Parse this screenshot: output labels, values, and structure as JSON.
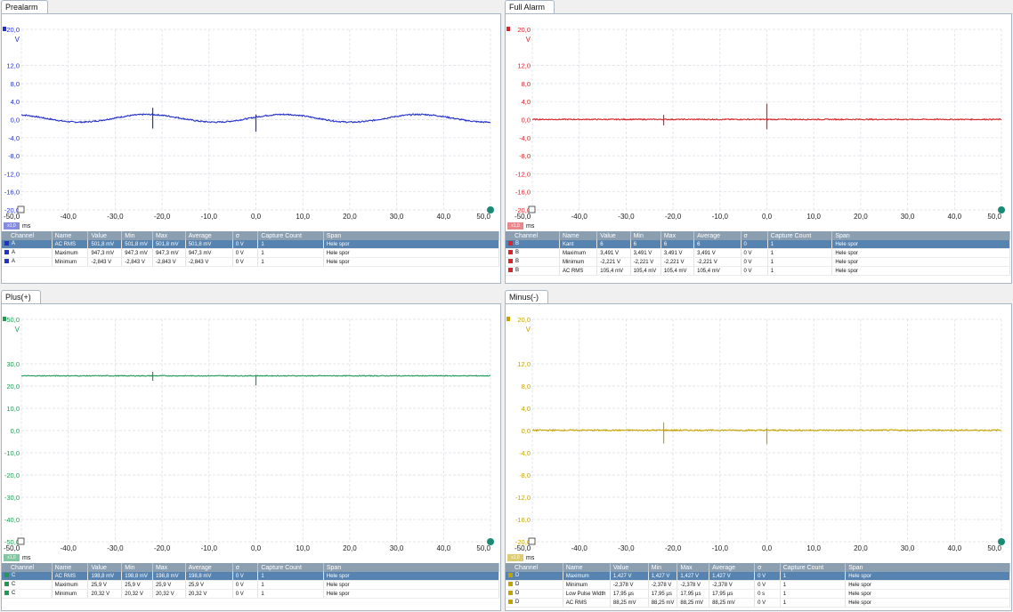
{
  "panels": [
    {
      "id": "A",
      "title": "Prealarm",
      "color": "#2231c7",
      "ymax_label": "20,0",
      "unit": "V",
      "y_ticks": [
        "12,0",
        "8,0",
        "4,0",
        "0,0",
        "-4,0",
        "-8,0",
        "-12,0",
        "-16,0",
        "-20,0"
      ],
      "y_values": [
        12,
        8,
        4,
        0,
        -4,
        -8,
        -12,
        -16,
        -20
      ],
      "ymin": -20,
      "ymax": 20,
      "x_ticks": [
        "-50,0",
        "-40,0",
        "-30,0",
        "-20,0",
        "-10,0",
        "0,0",
        "10,0",
        "20,0",
        "30,0",
        "40,0",
        "50,0"
      ],
      "x_unit": "ms",
      "zoom": "x1,0",
      "trace": {
        "kind": "sine",
        "offset": 0.3,
        "amp": 0.85,
        "period": 29,
        "phase": 0.3,
        "noise": 0.15,
        "spikes": [
          [
            -22,
            -3.1,
            1.5
          ],
          [
            0,
            -3.2,
            0.6
          ]
        ]
      },
      "headers": [
        "Channel",
        "Name",
        "Value",
        "Min",
        "Max",
        "Average",
        "σ",
        "Capture Count",
        "Span"
      ],
      "rows": [
        [
          "A",
          "AC RMS",
          "501,8 mV",
          "501,8 mV",
          "501,8 mV",
          "501,8 mV",
          "0 V",
          "1",
          "Hele spor"
        ],
        [
          "A",
          "Maximum",
          "947,3 mV",
          "947,3 mV",
          "947,3 mV",
          "947,3 mV",
          "0 V",
          "1",
          "Hele spor"
        ],
        [
          "A",
          "Minimum",
          "-2,843 V",
          "-2,843 V",
          "-2,843 V",
          "-2,843 V",
          "0 V",
          "1",
          "Hele spor"
        ]
      ]
    },
    {
      "id": "B",
      "title": "Full Alarm",
      "color": "#d8262c",
      "ymax_label": "20,0",
      "unit": "V",
      "y_ticks": [
        "12,0",
        "8,0",
        "4,0",
        "0,0",
        "-4,0",
        "-8,0",
        "-12,0",
        "-16,0",
        "-20,0"
      ],
      "y_values": [
        12,
        8,
        4,
        0,
        -4,
        -8,
        -12,
        -16,
        -20
      ],
      "ymin": -20,
      "ymax": 20,
      "x_ticks": [
        "-50,0",
        "-40,0",
        "-30,0",
        "-20,0",
        "-10,0",
        "0,0",
        "10,0",
        "20,0",
        "30,0",
        "40,0",
        "50,0"
      ],
      "x_unit": "ms",
      "zoom": "x1,0",
      "trace": {
        "kind": "flat",
        "offset": 0.05,
        "noise": 0.12,
        "spikes": [
          [
            -22,
            1.0,
            -1.3
          ],
          [
            0,
            3.5,
            -2.2
          ]
        ]
      },
      "headers": [
        "Channel",
        "Name",
        "Value",
        "Min",
        "Max",
        "Average",
        "σ",
        "Capture Count",
        "Span"
      ],
      "rows": [
        [
          "B",
          "Kant",
          "6",
          "6",
          "6",
          "6",
          "0",
          "1",
          "Hele spor"
        ],
        [
          "B",
          "Maximum",
          "3,491 V",
          "3,491 V",
          "3,491 V",
          "3,491 V",
          "0 V",
          "1",
          "Hele spor"
        ],
        [
          "B",
          "Minimum",
          "-2,221 V",
          "-2,221 V",
          "-2,221 V",
          "-2,221 V",
          "0 V",
          "1",
          "Hele spor"
        ],
        [
          "B",
          "AC RMS",
          "105,4 mV",
          "105,4 mV",
          "105,4 mV",
          "105,4 mV",
          "0 V",
          "1",
          "Hele spor"
        ]
      ]
    },
    {
      "id": "C",
      "title": "Plus(+)",
      "color": "#1f9a54",
      "ymax_label": "50,0",
      "unit": "V",
      "y_ticks": [
        "30,0",
        "20,0",
        "10,0",
        "0,0",
        "-10,0",
        "-20,0",
        "-30,0",
        "-40,0",
        "-50,0"
      ],
      "y_values": [
        30,
        20,
        10,
        0,
        -10,
        -20,
        -30,
        -40,
        -50
      ],
      "ymin": -50,
      "ymax": 50,
      "x_ticks": [
        "-50,0",
        "-40,0",
        "-30,0",
        "-20,0",
        "-10,0",
        "0,0",
        "10,0",
        "20,0",
        "30,0",
        "40,0",
        "50,0"
      ],
      "x_unit": "ms",
      "zoom": "x1,0",
      "trace": {
        "kind": "flat",
        "offset": 24.6,
        "noise": 0.18,
        "spikes": [
          [
            -22,
            1.8,
            -2.2
          ],
          [
            0,
            0.4,
            -4.3
          ]
        ]
      },
      "headers": [
        "Channel",
        "Name",
        "Value",
        "Min",
        "Max",
        "Average",
        "σ",
        "Capture Count",
        "Span"
      ],
      "rows": [
        [
          "C",
          "AC RMS",
          "198,8 mV",
          "198,8 mV",
          "198,8 mV",
          "198,8 mV",
          "0 V",
          "1",
          "Hele spor"
        ],
        [
          "C",
          "Maximum",
          "25,9 V",
          "25,9 V",
          "25,9 V",
          "25,9 V",
          "0 V",
          "1",
          "Hele spor"
        ],
        [
          "C",
          "Minimum",
          "20,32 V",
          "20,32 V",
          "20,32 V",
          "20,32 V",
          "0 V",
          "1",
          "Hele spor"
        ]
      ]
    },
    {
      "id": "D",
      "title": "Minus(-)",
      "color": "#c5a200",
      "ymax_label": "20,0",
      "unit": "V",
      "y_ticks": [
        "12,0",
        "8,0",
        "4,0",
        "0,0",
        "-4,0",
        "-8,0",
        "-12,0",
        "-16,0",
        "-20,0"
      ],
      "y_values": [
        12,
        8,
        4,
        0,
        -4,
        -8,
        -12,
        -16,
        -20
      ],
      "ymin": -20,
      "ymax": 20,
      "x_ticks": [
        "-50,0",
        "-40,0",
        "-30,0",
        "-20,0",
        "-10,0",
        "0,0",
        "10,0",
        "20,0",
        "30,0",
        "40,0",
        "50,0"
      ],
      "x_unit": "ms",
      "zoom": "x1,0",
      "trace": {
        "kind": "flat",
        "offset": 0.05,
        "noise": 0.12,
        "spikes": [
          [
            -22,
            1.4,
            -2.4
          ],
          [
            0,
            0.3,
            -2.5
          ]
        ]
      },
      "headers": [
        "Channel",
        "Name",
        "Value",
        "Min",
        "Max",
        "Average",
        "σ",
        "Capture Count",
        "Span"
      ],
      "rows": [
        [
          "D",
          "Maximum",
          "1,427 V",
          "1,427 V",
          "1,427 V",
          "1,427 V",
          "0 V",
          "1",
          "Hele spor"
        ],
        [
          "D",
          "Minimum",
          "-2,378 V",
          "-2,378 V",
          "-2,378 V",
          "-2,378 V",
          "0 V",
          "1",
          "Hele spor"
        ],
        [
          "D",
          "Low Pulse Width",
          "17,95 µs",
          "17,95 µs",
          "17,95 µs",
          "17,95 µs",
          "0 s",
          "1",
          "Hele spor"
        ],
        [
          "D",
          "AC RMS",
          "88,25 mV",
          "88,25 mV",
          "88,25 mV",
          "88,25 mV",
          "0 V",
          "1",
          "Hele spor"
        ]
      ]
    }
  ]
}
